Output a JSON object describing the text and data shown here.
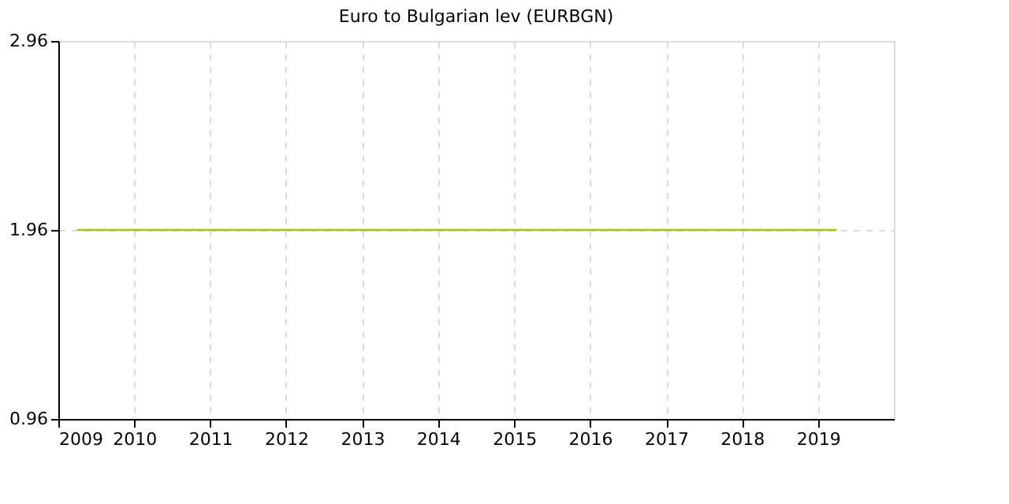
{
  "chart_data": {
    "type": "line",
    "title": "Euro to Bulgarian lev (EURBGN)",
    "x": [
      "2009-04",
      "2019-04"
    ],
    "series": [
      {
        "color": "#99cc00",
        "values": [
          1.96,
          1.96
        ]
      }
    ],
    "xlim": [
      "2009",
      "2020"
    ],
    "xticks": [
      "2009",
      "2010",
      "2011",
      "2012",
      "2013",
      "2014",
      "2015",
      "2016",
      "2017",
      "2018",
      "2019"
    ],
    "ylim": [
      0.96,
      2.96
    ],
    "yticks": [
      0.96,
      1.96,
      2.96
    ],
    "grid": true,
    "line_style": "solid",
    "marker": "none"
  }
}
